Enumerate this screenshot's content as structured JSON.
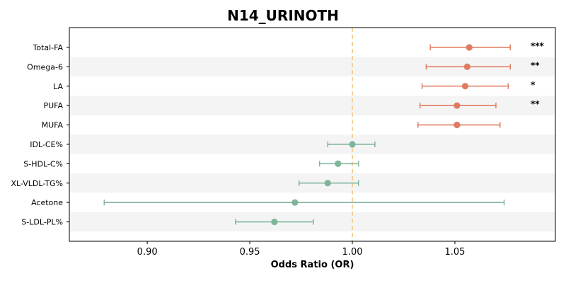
{
  "chart_data": {
    "type": "forest",
    "title": "N14_URINOTH",
    "xlabel": "Odds Ratio (OR)",
    "ylabel": "",
    "xlim": [
      0.862,
      1.099
    ],
    "xticks": [
      "0.90",
      "0.95",
      "1.00",
      "1.05"
    ],
    "reference_line": 1.0,
    "grid": false,
    "colors": {
      "positive": "#e07b5f",
      "negative": "#7fb59a",
      "reference": "#f5c88a",
      "band": "#f4f4f4"
    },
    "rows": [
      {
        "label": "Total-FA",
        "or": 1.057,
        "lower": 1.038,
        "upper": 1.077,
        "sig": "***",
        "direction": "positive"
      },
      {
        "label": "Omega-6",
        "or": 1.056,
        "lower": 1.036,
        "upper": 1.077,
        "sig": "**",
        "direction": "positive"
      },
      {
        "label": "LA",
        "or": 1.055,
        "lower": 1.034,
        "upper": 1.076,
        "sig": "*",
        "direction": "positive"
      },
      {
        "label": "PUFA",
        "or": 1.051,
        "lower": 1.033,
        "upper": 1.07,
        "sig": "**",
        "direction": "positive"
      },
      {
        "label": "MUFA",
        "or": 1.051,
        "lower": 1.032,
        "upper": 1.072,
        "sig": "",
        "direction": "positive"
      },
      {
        "label": "IDL-CE%",
        "or": 1.0,
        "lower": 0.988,
        "upper": 1.011,
        "sig": "",
        "direction": "negative"
      },
      {
        "label": "S-HDL-C%",
        "or": 0.993,
        "lower": 0.984,
        "upper": 1.003,
        "sig": "",
        "direction": "negative"
      },
      {
        "label": "XL-VLDL-TG%",
        "or": 0.988,
        "lower": 0.974,
        "upper": 1.003,
        "sig": "",
        "direction": "negative"
      },
      {
        "label": "Acetone",
        "or": 0.972,
        "lower": 0.879,
        "upper": 1.074,
        "sig": "",
        "direction": "negative"
      },
      {
        "label": "S-LDL-PL%",
        "or": 0.962,
        "lower": 0.943,
        "upper": 0.981,
        "sig": "",
        "direction": "negative"
      }
    ]
  }
}
